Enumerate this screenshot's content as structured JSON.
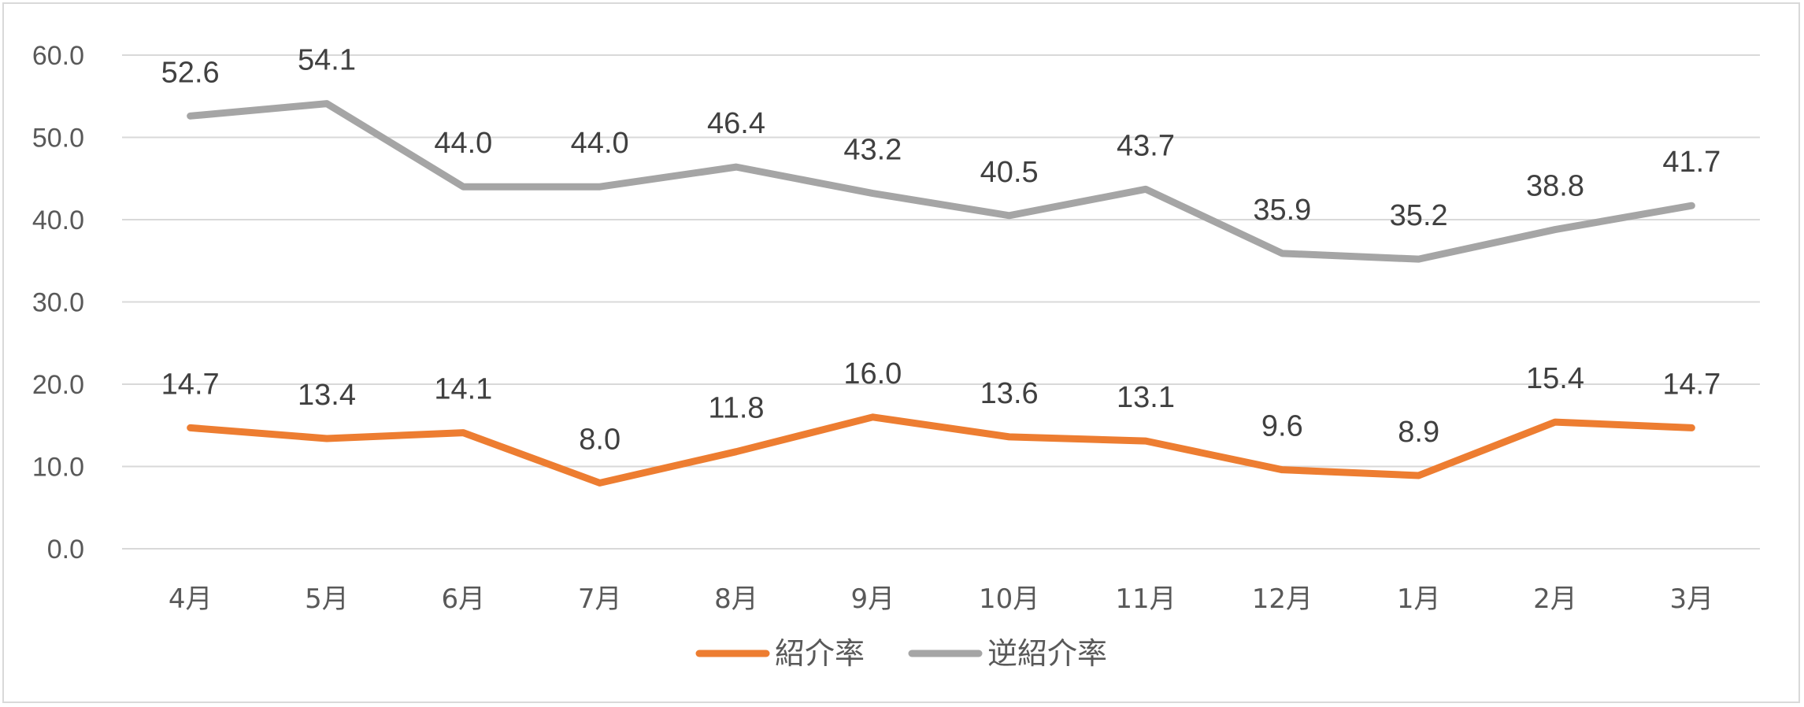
{
  "chart_data": {
    "type": "line",
    "categories": [
      "4月",
      "5月",
      "6月",
      "7月",
      "8月",
      "9月",
      "10月",
      "11月",
      "12月",
      "1月",
      "2月",
      "3月"
    ],
    "series": [
      {
        "name": "紹介率",
        "color": "#ED7D31",
        "values": [
          14.7,
          13.4,
          14.1,
          8.0,
          11.8,
          16.0,
          13.6,
          13.1,
          9.6,
          8.9,
          15.4,
          14.7
        ]
      },
      {
        "name": "逆紹介率",
        "color": "#A5A5A5",
        "values": [
          52.6,
          54.1,
          44.0,
          44.0,
          46.4,
          43.2,
          40.5,
          43.7,
          35.9,
          35.2,
          38.8,
          41.7
        ]
      }
    ],
    "y_ticks": [
      "0.0",
      "10.0",
      "20.0",
      "30.0",
      "40.0",
      "50.0",
      "60.0"
    ],
    "ylim": [
      0,
      60
    ],
    "grid": true,
    "legend_position": "bottom",
    "data_labels": true
  }
}
